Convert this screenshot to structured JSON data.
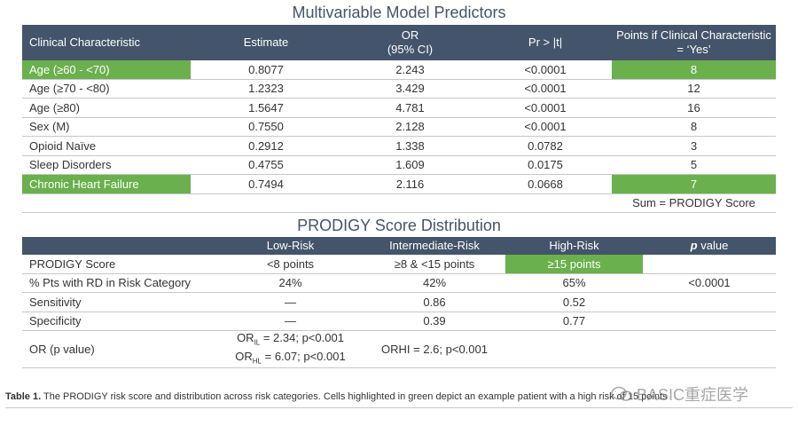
{
  "title1": "Multivariable Model Predictors",
  "table1": {
    "headers": {
      "characteristic": "Clinical Characteristic",
      "estimate": "Estimate",
      "or_line1": "OR",
      "or_line2": "(95% CI)",
      "pr": "Pr > |t|",
      "points_line1": "Points if Clinical Characteristic",
      "points_line2": "= ‘Yes’"
    },
    "rows": [
      {
        "characteristic": "Age (≥60 - <70)",
        "estimate": "0.8077",
        "or": "2.243",
        "pr": "<0.0001",
        "points": "8"
      },
      {
        "characteristic": "Age (≥70 - <80)",
        "estimate": "1.2323",
        "or": "3.429",
        "pr": "<0.0001",
        "points": "12"
      },
      {
        "characteristic": "Age (≥80)",
        "estimate": "1.5647",
        "or": "4.781",
        "pr": "<0.0001",
        "points": "16"
      },
      {
        "characteristic": "Sex (M)",
        "estimate": "0.7550",
        "or": "2.128",
        "pr": "<0.0001",
        "points": "8"
      },
      {
        "characteristic": "Opioid Naïve",
        "estimate": "0.2912",
        "or": "1.338",
        "pr": "0.0782",
        "points": "3"
      },
      {
        "characteristic": "Sleep Disorders",
        "estimate": "0.4755",
        "or": "1.609",
        "pr": "0.0175",
        "points": "5"
      },
      {
        "characteristic": "Chronic Heart Failure",
        "estimate": "0.7494",
        "or": "2.116",
        "pr": "0.0668",
        "points": "7"
      }
    ],
    "sum_label": "Sum = PRODIGY Score"
  },
  "title2": "PRODIGY Score Distribution",
  "table2": {
    "headers": {
      "blank": "",
      "low": "Low-Risk",
      "intermediate": "Intermediate-Risk",
      "high": "High-Risk",
      "p_italic": "p",
      "p_rest": " value"
    },
    "rows": [
      {
        "label": "PRODIGY Score",
        "low": "<8 points",
        "intermediate": "≥8 & <15 points",
        "high": "≥15 points",
        "p": ""
      },
      {
        "label": "% Pts with RD in Risk Category",
        "low": "24%",
        "intermediate": "42%",
        "high": "65%",
        "p": "<0.0001"
      },
      {
        "label": "Sensitivity",
        "low": "—",
        "intermediate": "0.86",
        "high": "0.52",
        "p": ""
      },
      {
        "label": "Specificity",
        "low": "—",
        "intermediate": "0.39",
        "high": "0.77",
        "p": ""
      }
    ],
    "or_row": {
      "label": "OR (p value)",
      "low_line1_pre": "OR",
      "low_line1_sub": "IL",
      "low_line1_post": " = 2.34; p<0.001",
      "low_line2_pre": "OR",
      "low_line2_sub": "HL",
      "low_line2_post": " = 6.07; p<0.001",
      "intermediate": "ORHI = 2.6; p<0.001"
    }
  },
  "caption": {
    "bold": "Table 1.",
    "text": " The PRODIGY risk score and distribution across risk categories. Cells highlighted in green depict an example patient with a high risk of 15 points"
  },
  "watermark": "BASIC重症医学",
  "colors": {
    "header": "#44546a",
    "highlight": "#6ab04c"
  }
}
